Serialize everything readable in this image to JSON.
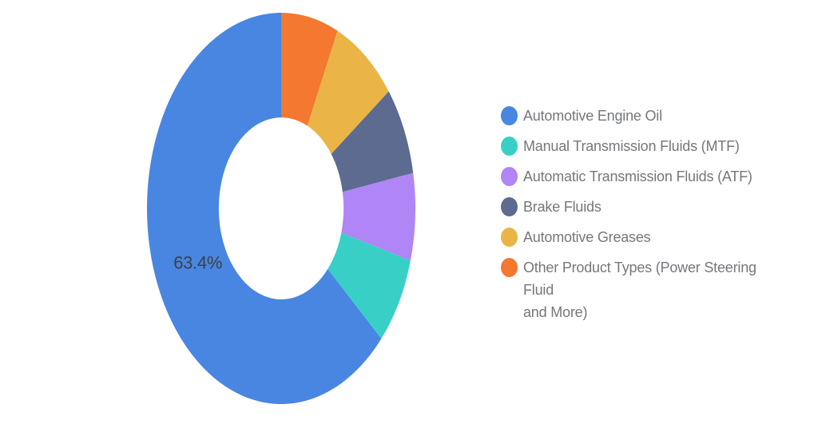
{
  "page": {
    "background": "#ffffff"
  },
  "chart_data": {
    "type": "pie",
    "subtype": "donut",
    "title": "",
    "hole_ratio": 0.465,
    "start_angle_deg": 0,
    "direction": "counterclockwise",
    "legend_position": "right",
    "data_label_color": "#3d4045",
    "legend_text_color": "#74777c",
    "slices": [
      {
        "name": "Automotive Engine Oil",
        "value_pct": 63.4,
        "color": "#4886e1",
        "data_label": "63.4%",
        "legend_lines": [
          "Automotive Engine Oil"
        ]
      },
      {
        "name": "Manual Transmission Fluids (MTF)",
        "value_pct": 7.3,
        "color": "#38d0c6",
        "data_label": null,
        "legend_lines": [
          "Manual Transmission Fluids (MTF)"
        ]
      },
      {
        "name": "Automatic Transmission Fluids (ATF)",
        "value_pct": 7.2,
        "color": "#b085f5",
        "data_label": null,
        "legend_lines": [
          "Automatic Transmission Fluids (ATF)"
        ]
      },
      {
        "name": "Brake Fluids",
        "value_pct": 7.3,
        "color": "#5c6b8f",
        "data_label": null,
        "legend_lines": [
          "Brake Fluids"
        ]
      },
      {
        "name": "Automotive Greases",
        "value_pct": 7.9,
        "color": "#eab546",
        "data_label": null,
        "legend_lines": [
          "Automotive Greases"
        ]
      },
      {
        "name": "Other Product Types (Power Steering Fluid and More)",
        "value_pct": 6.9,
        "color": "#f4782f",
        "data_label": null,
        "legend_lines": [
          "Other Product Types (Power Steering Fluid",
          "and More)"
        ]
      }
    ]
  }
}
